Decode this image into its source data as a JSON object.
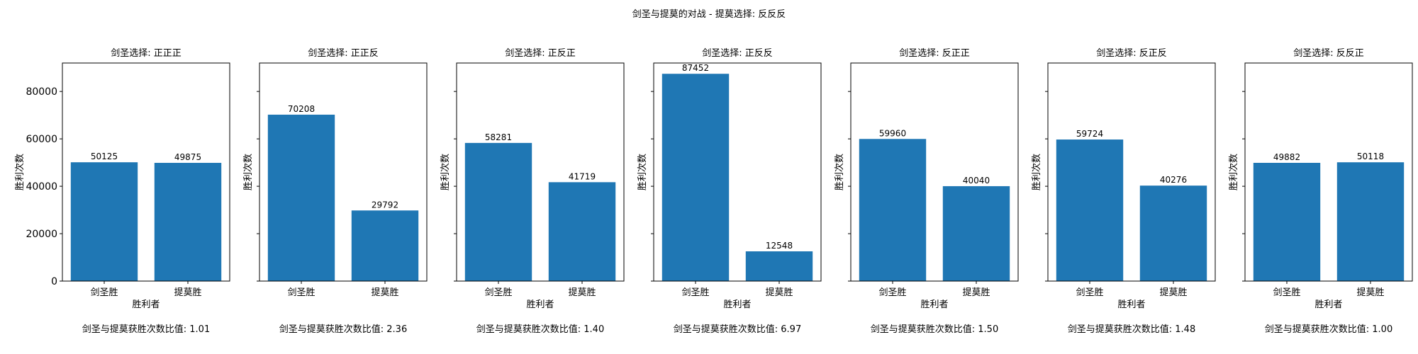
{
  "suptitle": "剑圣与提莫的对战 - 提莫选择: 反反反",
  "colors": {
    "bar": "#1f77b4"
  },
  "chart_data": [
    {
      "type": "bar",
      "title": "剑圣选择: 正正正",
      "categories": [
        "剑圣胜",
        "提莫胜"
      ],
      "values": [
        50125,
        49875
      ],
      "xlabel": "胜利者",
      "ylabel": "胜利次数",
      "ylim": [
        0,
        92000
      ],
      "yticks": [
        0,
        20000,
        40000,
        60000,
        80000
      ],
      "ratio_text": "剑圣与提莫获胜次数比值: 1.01"
    },
    {
      "type": "bar",
      "title": "剑圣选择: 正正反",
      "categories": [
        "剑圣胜",
        "提莫胜"
      ],
      "values": [
        70208,
        29792
      ],
      "xlabel": "",
      "ylabel": "胜利次数",
      "ylim": [
        0,
        92000
      ],
      "yticks": [
        0,
        20000,
        40000,
        60000,
        80000
      ],
      "ratio_text": "剑圣与提莫获胜次数比值: 2.36"
    },
    {
      "type": "bar",
      "title": "剑圣选择: 正反正",
      "categories": [
        "剑圣胜",
        "提莫胜"
      ],
      "values": [
        58281,
        41719
      ],
      "xlabel": "胜利者",
      "ylabel": "胜利次数",
      "ylim": [
        0,
        92000
      ],
      "yticks": [
        0,
        20000,
        40000,
        60000,
        80000
      ],
      "ratio_text": "剑圣与提莫获胜次数比值: 1.40"
    },
    {
      "type": "bar",
      "title": "剑圣选择: 正反反",
      "categories": [
        "剑圣胜",
        "提莫胜"
      ],
      "values": [
        87452,
        12548
      ],
      "xlabel": "胜利者",
      "ylabel": "胜利次数",
      "ylim": [
        0,
        92000
      ],
      "yticks": [
        0,
        20000,
        40000,
        60000,
        80000
      ],
      "ratio_text": "剑圣与提莫获胜次数比值: 6.97"
    },
    {
      "type": "bar",
      "title": "剑圣选择: 反正正",
      "categories": [
        "剑圣胜",
        "提莫胜"
      ],
      "values": [
        59960,
        40040
      ],
      "xlabel": "胜利者",
      "ylabel": "胜利次数",
      "ylim": [
        0,
        92000
      ],
      "yticks": [
        0,
        20000,
        40000,
        60000,
        80000
      ],
      "ratio_text": "剑圣与提莫获胜次数比值: 1.50"
    },
    {
      "type": "bar",
      "title": "剑圣选择: 反正反",
      "categories": [
        "剑圣胜",
        "提莫胜"
      ],
      "values": [
        59724,
        40276
      ],
      "xlabel": "胜利者",
      "ylabel": "胜利次数",
      "ylim": [
        0,
        92000
      ],
      "yticks": [
        0,
        20000,
        40000,
        60000,
        80000
      ],
      "ratio_text": "剑圣与提莫获胜次数比值: 1.48"
    },
    {
      "type": "bar",
      "title": "剑圣选择: 反反正",
      "categories": [
        "剑圣胜",
        "提莫胜"
      ],
      "values": [
        49882,
        50118
      ],
      "xlabel": "胜利者",
      "ylabel": "胜利次数",
      "ylim": [
        0,
        92000
      ],
      "yticks": [
        0,
        20000,
        40000,
        60000,
        80000
      ],
      "ratio_text": "剑圣与提莫获胜次数比值: 1.00"
    }
  ]
}
